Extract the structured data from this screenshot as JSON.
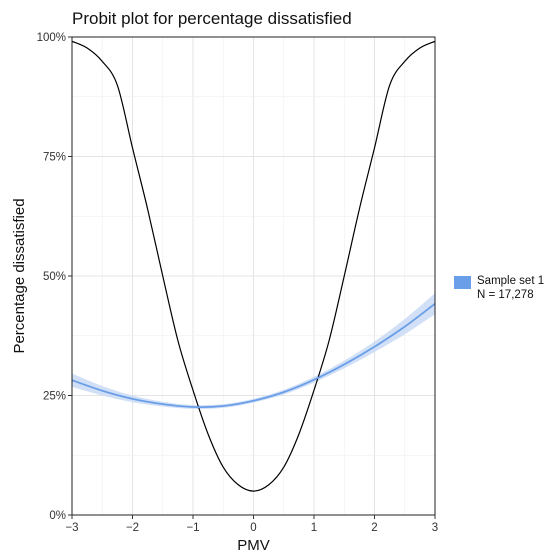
{
  "chart_data": {
    "type": "line",
    "title": "Probit plot for percentage dissatisfied",
    "xlabel": "PMV",
    "ylabel": "Percentage dissatisfied",
    "xlim": [
      -3,
      3
    ],
    "ylim": [
      0,
      100
    ],
    "x_ticks": [
      -3,
      -2,
      -1,
      0,
      1,
      2,
      3
    ],
    "x_tick_labels": [
      "−3",
      "−2",
      "−1",
      "0",
      "1",
      "2",
      "3"
    ],
    "y_ticks": [
      0,
      25,
      50,
      75,
      100
    ],
    "y_tick_labels": [
      "0%",
      "25%",
      "50%",
      "75%",
      "100%"
    ],
    "grid": true,
    "legend_position": "right",
    "legend": {
      "label_line1": "Sample set 1",
      "label_line2": "N = 17,278"
    },
    "series": [
      {
        "kind": "reference-ppd",
        "color": "#000000",
        "x": [
          -3,
          -2.75,
          -2.5,
          -2.25,
          -2,
          -1.75,
          -1.5,
          -1.25,
          -1,
          -0.75,
          -0.5,
          -0.25,
          0,
          0.25,
          0.5,
          0.75,
          1,
          1.25,
          1.5,
          1.75,
          2,
          2.25,
          2.5,
          2.75,
          3
        ],
        "y": [
          99.1,
          97.7,
          94.9,
          89.9,
          76.8,
          64.0,
          50.0,
          36.5,
          26.1,
          16.9,
          10.0,
          6.3,
          5.0,
          6.3,
          10.0,
          16.9,
          26.1,
          36.5,
          50.0,
          64.0,
          76.8,
          89.9,
          94.9,
          97.7,
          99.1
        ]
      },
      {
        "kind": "fitted-probit",
        "color": "#6b9ee8",
        "band_color": "#c9daf5",
        "x": [
          -3,
          -2.5,
          -2,
          -1.5,
          -1,
          -0.5,
          0,
          0.5,
          1,
          1.5,
          2,
          2.5,
          3
        ],
        "y": [
          28.2,
          26.0,
          24.3,
          23.2,
          22.6,
          22.8,
          23.9,
          25.7,
          28.3,
          31.5,
          35.2,
          39.4,
          44.2
        ],
        "lower": [
          26.8,
          25.0,
          23.6,
          22.7,
          22.2,
          22.4,
          23.5,
          25.2,
          27.7,
          30.7,
          34.1,
          37.8,
          42.0
        ],
        "upper": [
          29.6,
          27.0,
          25.0,
          23.7,
          23.0,
          23.2,
          24.3,
          26.2,
          28.9,
          32.3,
          36.3,
          41.0,
          46.4
        ]
      }
    ]
  }
}
